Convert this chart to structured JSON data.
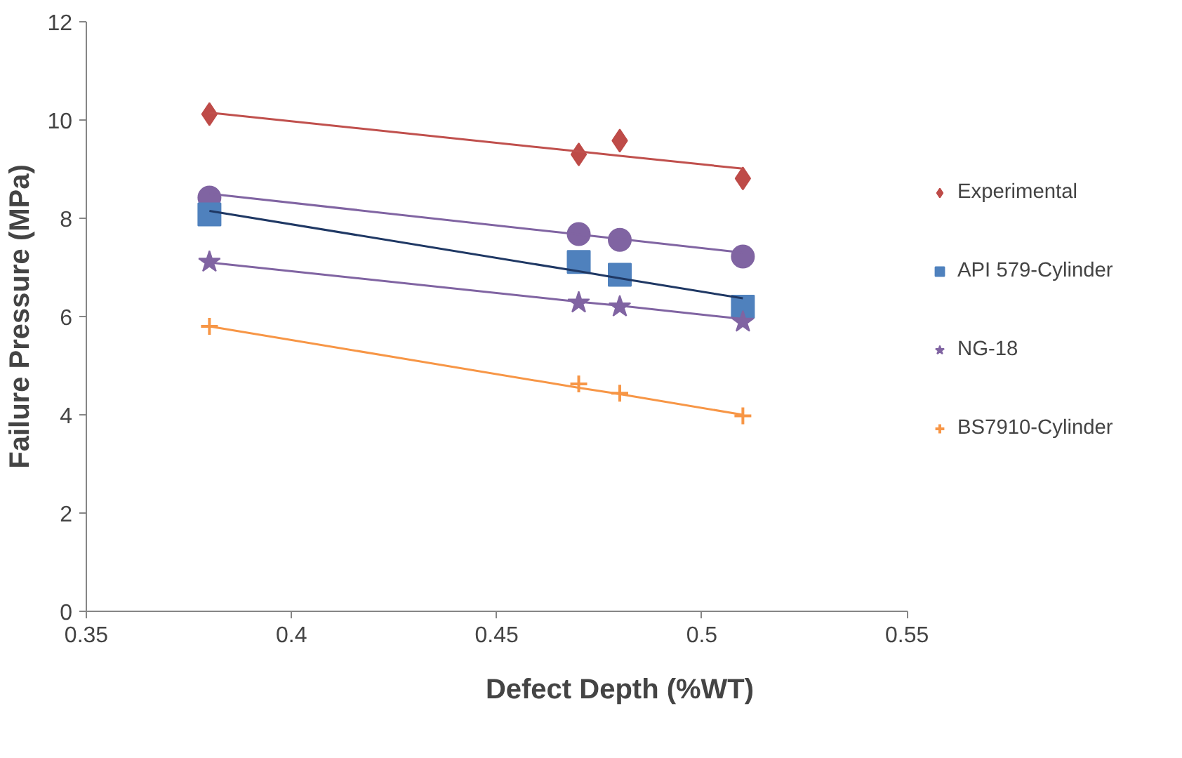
{
  "chart_data": {
    "type": "scatter",
    "xlabel": "Defect Depth (%WT)",
    "ylabel": "Failure Pressure (MPa)",
    "x": [
      0.38,
      0.47,
      0.48,
      0.51
    ],
    "xlim": [
      0.35,
      0.55
    ],
    "xticks": [
      0.35,
      0.4,
      0.45,
      0.5,
      0.55
    ],
    "ylim": [
      0,
      12
    ],
    "yticks": [
      0,
      2,
      4,
      6,
      8,
      10,
      12
    ],
    "grid": false,
    "legend": "right",
    "series": [
      {
        "name": "Experimental",
        "color": "#be4b48",
        "marker": "diamond",
        "values": [
          10.12,
          9.3,
          9.58,
          8.81
        ]
      },
      {
        "color": "#8064a2",
        "marker": "circle",
        "values": [
          8.42,
          7.68,
          7.56,
          7.22
        ]
      },
      {
        "name": "API 579-Cylinder",
        "color": "#4f81bd",
        "marker": "square",
        "values": [
          8.08,
          7.11,
          6.85,
          6.2
        ]
      },
      {
        "name": "NG-18",
        "color": "#8064a2",
        "marker": "star",
        "values": [
          7.11,
          6.28,
          6.2,
          5.89
        ]
      },
      {
        "name": "BS7910-Cylinder",
        "color": "#f79646",
        "marker": "cross",
        "values": [
          5.8,
          4.63,
          4.44,
          3.98
        ]
      },
      {
        "type": "line",
        "color": "#c0504d",
        "values": [
          10.15,
          9.36,
          9.27,
          9.01
        ]
      },
      {
        "type": "line",
        "color": "#8064a2",
        "values": [
          8.5,
          7.67,
          7.58,
          7.3
        ]
      },
      {
        "type": "line",
        "color": "#1f3864",
        "values": [
          8.15,
          6.92,
          6.78,
          6.37
        ]
      },
      {
        "type": "line",
        "color": "#8064a2",
        "values": [
          7.1,
          6.3,
          6.22,
          5.95
        ]
      },
      {
        "type": "line",
        "color": "#f79646",
        "values": [
          5.8,
          4.55,
          4.42,
          4.0
        ]
      }
    ]
  }
}
